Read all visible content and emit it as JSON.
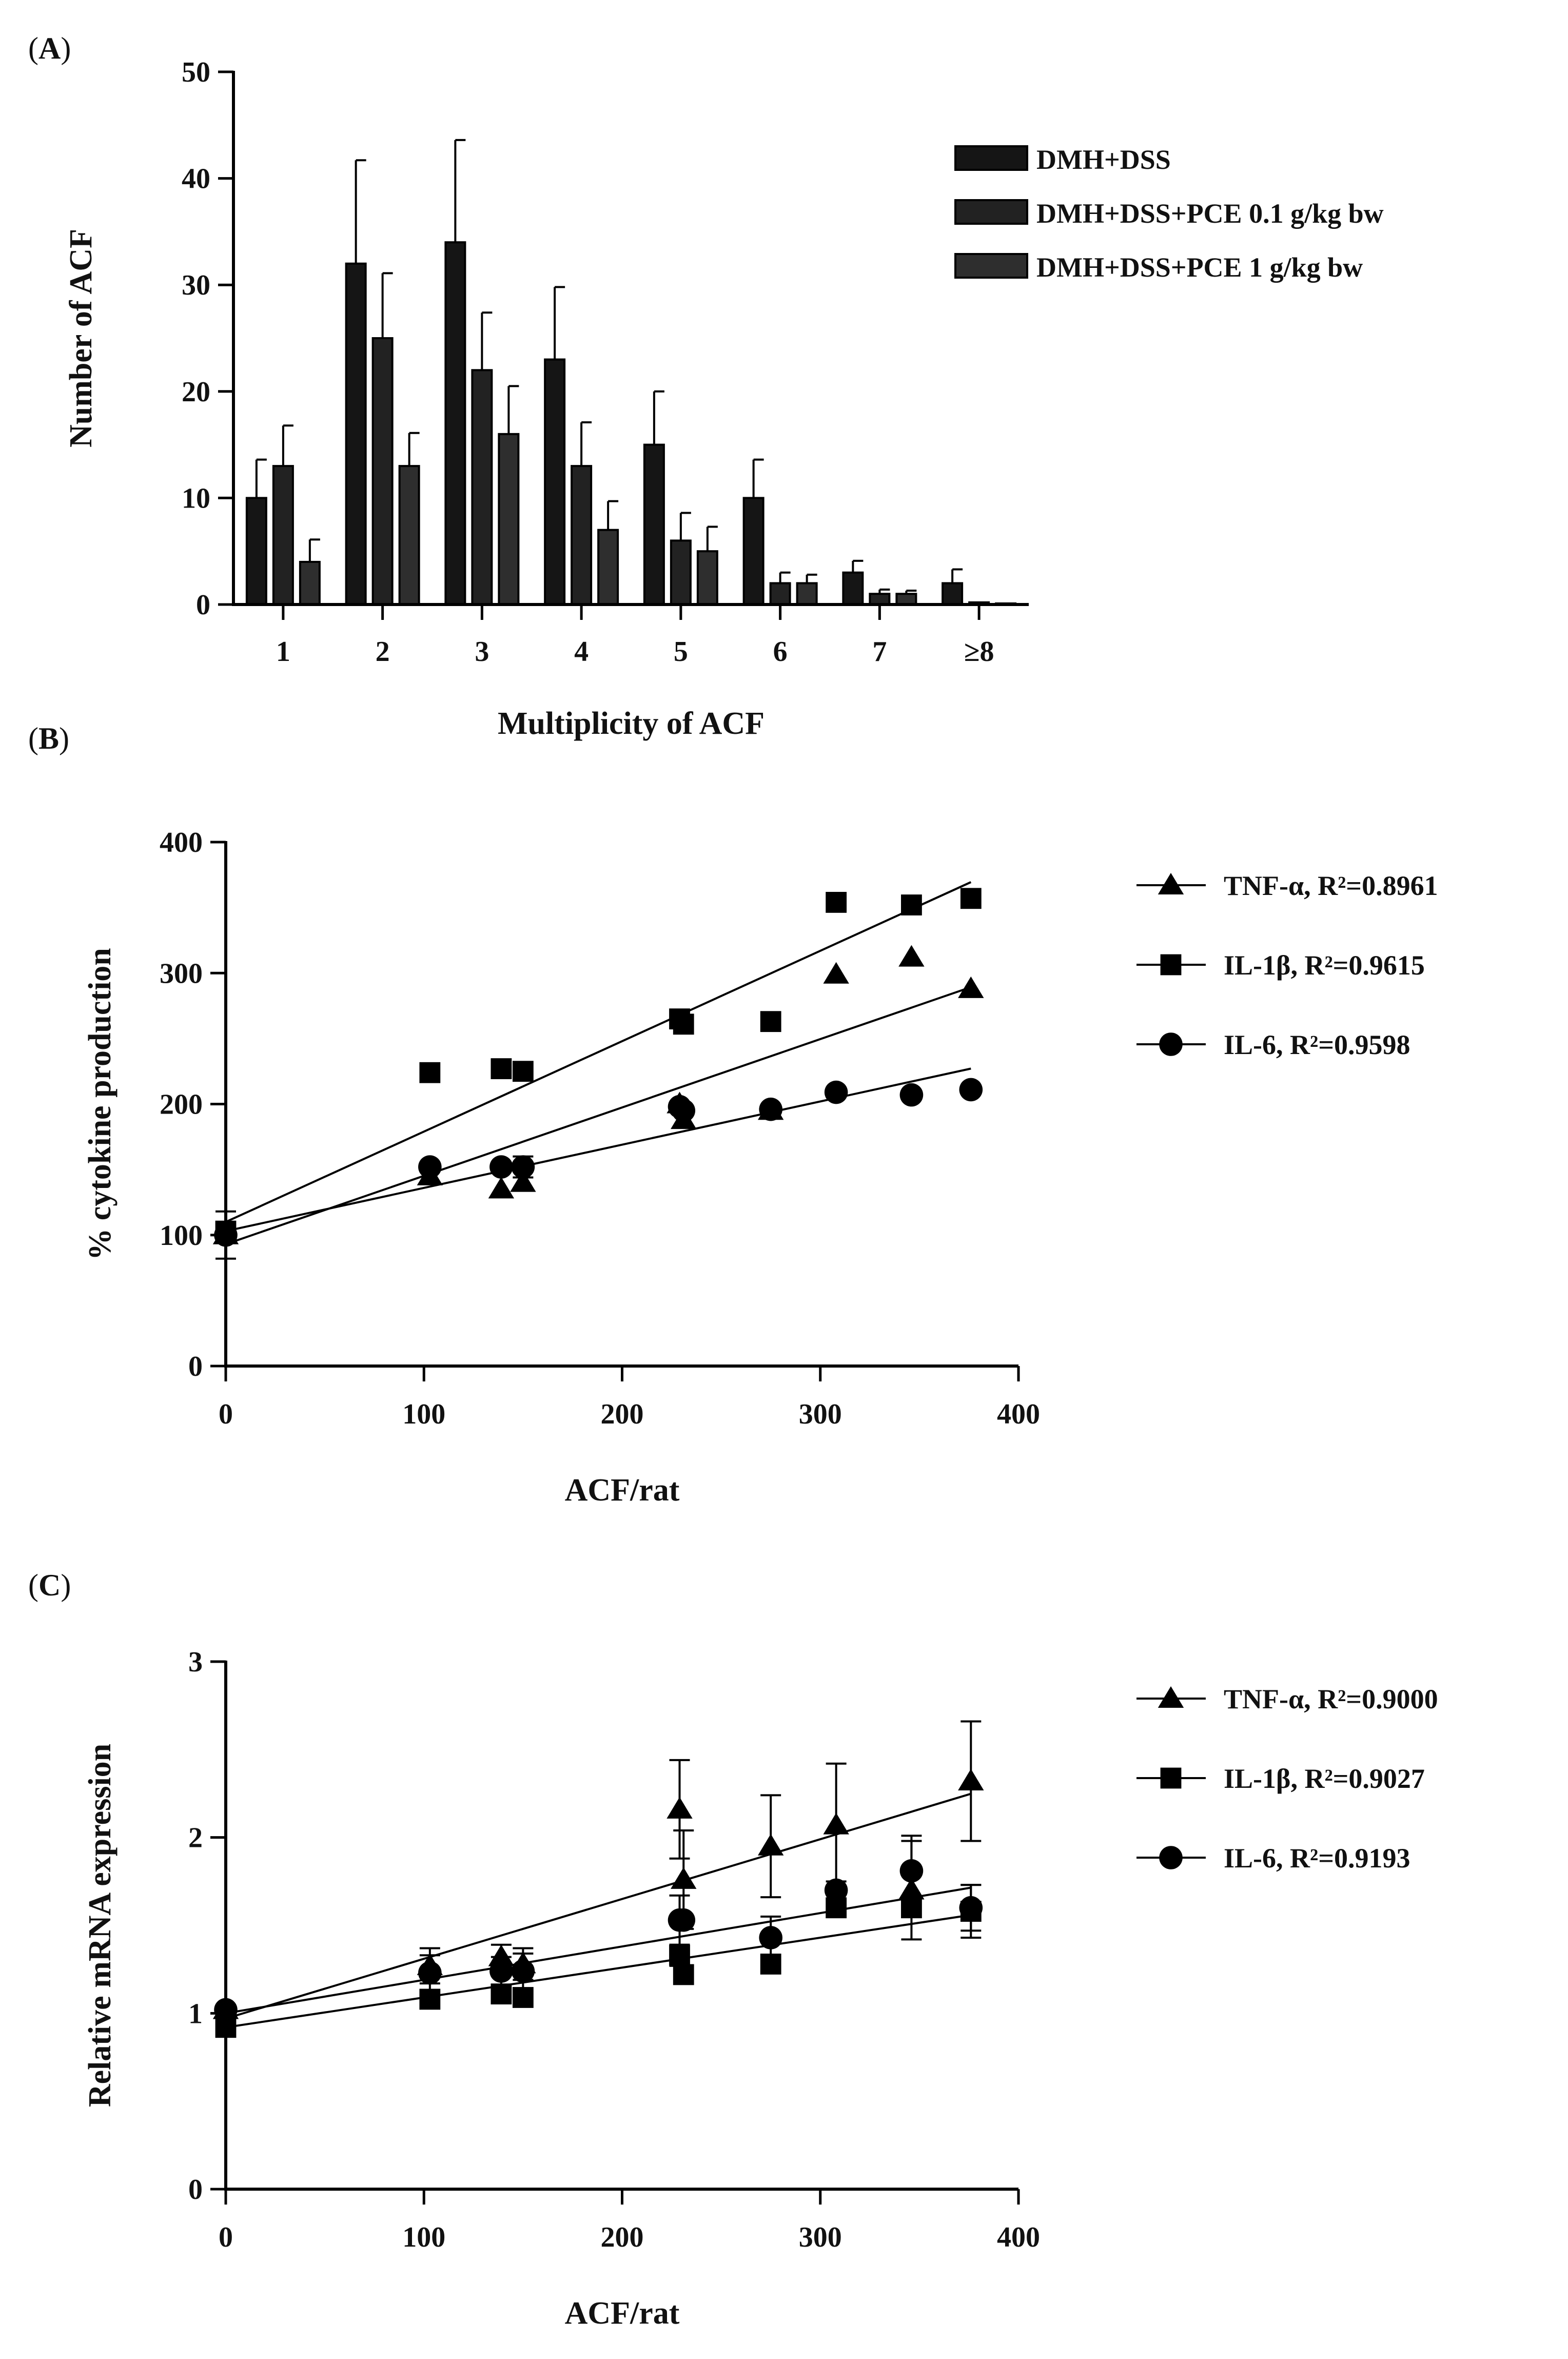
{
  "panels": {
    "a": {
      "label_open": "(",
      "label_letter": "A",
      "label_close": ")"
    },
    "b": {
      "label_open": "(",
      "label_letter": "B",
      "label_close": ")"
    },
    "c": {
      "label_open": "(",
      "label_letter": "C",
      "label_close": ")"
    }
  },
  "chart_data": [
    {
      "id": "A",
      "type": "bar",
      "xlabel": "Multiplicity of ACF",
      "ylabel": "Number of ACF",
      "categories": [
        "1",
        "2",
        "3",
        "4",
        "5",
        "6",
        "7",
        "≥8"
      ],
      "ylim": [
        0,
        50
      ],
      "yticks": [
        0,
        10,
        20,
        30,
        40,
        50
      ],
      "legend_position": "top-right",
      "series": [
        {
          "name": "DMH+DSS",
          "color": "#151515",
          "values": [
            10,
            32,
            34,
            23,
            15,
            10,
            3,
            2
          ],
          "errors": [
            3.6,
            9.7,
            9.6,
            6.8,
            5,
            3.6,
            1.1,
            1.3
          ]
        },
        {
          "name": "DMH+DSS+PCE 0.1 g/kg bw",
          "color": "#222222",
          "values": [
            13,
            25,
            22,
            13,
            6,
            2,
            1,
            0.2
          ],
          "errors": [
            3.8,
            6.1,
            5.4,
            4.1,
            2.6,
            1,
            0.4,
            0
          ]
        },
        {
          "name": "DMH+DSS+PCE 1 g/kg bw",
          "color": "#2e2e2e",
          "values": [
            4,
            13,
            16,
            7,
            5,
            2,
            1,
            0.1
          ],
          "errors": [
            2.1,
            3.1,
            4.5,
            2.7,
            2.3,
            0.8,
            0.3,
            0
          ]
        }
      ]
    },
    {
      "id": "B",
      "type": "scatter",
      "xlabel": "ACF/rat",
      "ylabel": "% cytokine production",
      "xlim": [
        0,
        400
      ],
      "ylim": [
        0,
        400
      ],
      "xticks": [
        0,
        100,
        200,
        300,
        400
      ],
      "yticks": [
        0,
        100,
        200,
        300,
        400
      ],
      "legend_position": "right",
      "series": [
        {
          "name": "TNF-α",
          "r2_text": "R²=0.8961",
          "marker": "triangle",
          "points": [
            [
              0,
              100,
              18
            ],
            [
              103,
              145,
              0
            ],
            [
              139,
              135,
              0
            ],
            [
              150,
              140,
              0
            ],
            [
              229,
              200,
              0
            ],
            [
              231,
              188,
              0
            ],
            [
              275,
              195,
              0
            ],
            [
              308,
              299,
              0
            ],
            [
              346,
              312,
              0
            ],
            [
              376,
              288,
              0
            ]
          ],
          "fit": [
            93,
            0.522
          ]
        },
        {
          "name": "IL-1β",
          "r2_text": "R²=0.9615",
          "marker": "square",
          "points": [
            [
              0,
              103,
              0
            ],
            [
              103,
              224,
              0
            ],
            [
              139,
              227,
              0
            ],
            [
              150,
              225,
              0
            ],
            [
              229,
              265,
              0
            ],
            [
              231,
              261,
              0
            ],
            [
              275,
              263,
              0
            ],
            [
              308,
              354,
              0
            ],
            [
              346,
              352,
              0
            ],
            [
              376,
              357,
              0
            ]
          ],
          "fit": [
            110,
            0.69
          ]
        },
        {
          "name": "IL-6",
          "r2_text": "R²=0.9598",
          "marker": "circle",
          "points": [
            [
              0,
              100,
              0
            ],
            [
              103,
              152,
              0
            ],
            [
              139,
              152,
              0
            ],
            [
              150,
              152,
              8
            ],
            [
              229,
              198,
              0
            ],
            [
              231,
              195,
              0
            ],
            [
              275,
              196,
              0
            ],
            [
              308,
              209,
              0
            ],
            [
              346,
              207,
              0
            ],
            [
              376,
              211,
              0
            ]
          ],
          "fit": [
            103,
            0.33
          ]
        }
      ]
    },
    {
      "id": "C",
      "type": "scatter",
      "xlabel": "ACF/rat",
      "ylabel": "Relative mRNA expression",
      "xlim": [
        0,
        400
      ],
      "ylim": [
        0,
        3
      ],
      "xticks": [
        0,
        100,
        200,
        300,
        400
      ],
      "yticks": [
        0,
        1,
        2,
        3
      ],
      "legend_position": "right",
      "series": [
        {
          "name": "TNF-α",
          "r2_text": "R²=0.9000",
          "marker": "triangle",
          "points": [
            [
              0,
              1.02,
              0.02
            ],
            [
              103,
              1.27,
              0.1
            ],
            [
              139,
              1.32,
              0.07
            ],
            [
              150,
              1.28,
              0.09
            ],
            [
              229,
              2.16,
              0.28
            ],
            [
              231,
              1.76,
              0.28
            ],
            [
              275,
              1.95,
              0.29
            ],
            [
              308,
              2.07,
              0.35
            ],
            [
              346,
              1.7,
              0.28
            ],
            [
              376,
              2.32,
              0.34
            ]
          ],
          "fit": [
            0.97,
            0.0034
          ]
        },
        {
          "name": "IL-1β",
          "r2_text": "R²=0.9027",
          "marker": "square",
          "points": [
            [
              0,
              0.92,
              0.03
            ],
            [
              103,
              1.08,
              0.03
            ],
            [
              139,
              1.11,
              0.03
            ],
            [
              150,
              1.09,
              0.03
            ],
            [
              229,
              1.33,
              0.06
            ],
            [
              231,
              1.22,
              0.04
            ],
            [
              275,
              1.28,
              0.05
            ],
            [
              308,
              1.6,
              0.04
            ],
            [
              346,
              1.6,
              0.05
            ],
            [
              376,
              1.58,
              0.15
            ]
          ],
          "fit": [
            0.92,
            0.0017
          ]
        },
        {
          "name": "IL-6",
          "r2_text": "R²=0.9193",
          "marker": "circle",
          "points": [
            [
              0,
              1.02,
              0.02
            ],
            [
              103,
              1.23,
              0.1
            ],
            [
              139,
              1.24,
              0.08
            ],
            [
              150,
              1.24,
              0.1
            ],
            [
              229,
              1.53,
              0.14
            ],
            [
              231,
              1.53,
              0
            ],
            [
              275,
              1.43,
              0.12
            ],
            [
              308,
              1.7,
              0.05
            ],
            [
              346,
              1.81,
              0.2
            ],
            [
              376,
              1.6,
              0.13
            ]
          ],
          "fit": [
            1.0,
            0.0019
          ]
        }
      ]
    }
  ]
}
